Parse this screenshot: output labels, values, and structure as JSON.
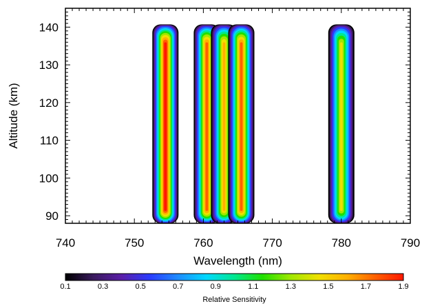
{
  "chart_data": {
    "type": "heatmap",
    "xlabel": "Wavelength (nm)",
    "ylabel": "Altitude (km)",
    "xlim": [
      740,
      790
    ],
    "ylim": [
      88,
      145
    ],
    "x_ticks": [
      740,
      750,
      760,
      770,
      780,
      790
    ],
    "y_ticks": [
      90,
      100,
      110,
      120,
      130,
      140
    ],
    "bands": [
      {
        "center_nm": 754.5,
        "altitude_min_km": 88,
        "altitude_max_km": 140,
        "peak_sensitivity": 1.9
      },
      {
        "center_nm": 760.5,
        "altitude_min_km": 88,
        "altitude_max_km": 140,
        "peak_sensitivity": 1.8
      },
      {
        "center_nm": 763.0,
        "altitude_min_km": 88,
        "altitude_max_km": 140,
        "peak_sensitivity": 1.6
      },
      {
        "center_nm": 765.5,
        "altitude_min_km": 88,
        "altitude_max_km": 140,
        "peak_sensitivity": 1.7
      },
      {
        "center_nm": 780.0,
        "altitude_min_km": 88,
        "altitude_max_km": 140,
        "peak_sensitivity": 1.4
      }
    ],
    "colorbar": {
      "title": "Relative Sensitivity",
      "range": [
        0.1,
        1.9
      ],
      "tick_labels": [
        "0.1",
        "0.3",
        "0.5",
        "0.7",
        "0.9",
        "1.1",
        "1.3",
        "1.5",
        "1.7",
        "1.9"
      ],
      "colors": [
        "#000000",
        "#3a1a5e",
        "#5a1ea8",
        "#2a3cff",
        "#1e8cff",
        "#00d8ff",
        "#00e890",
        "#20e000",
        "#a0e800",
        "#f0e000",
        "#ffb000",
        "#ff6000",
        "#ff1800"
      ]
    }
  }
}
